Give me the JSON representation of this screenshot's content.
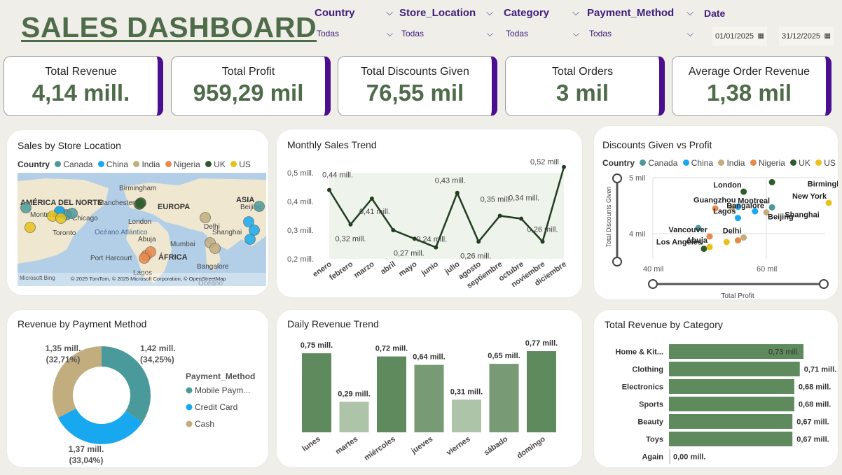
{
  "header": {
    "title": "SALES DASHBOARD"
  },
  "slicers": [
    {
      "label": "Country",
      "value": "Todas"
    },
    {
      "label": "Store_Location",
      "value": "Todas"
    },
    {
      "label": "Category",
      "value": "Todas"
    },
    {
      "label": "Payment_Method",
      "value": "Todas"
    }
  ],
  "date_slicer": {
    "label": "Date",
    "start": "01/01/2025",
    "end": "31/12/2025"
  },
  "kpis": [
    {
      "title": "Total Revenue",
      "value": "4,14 mill."
    },
    {
      "title": "Total Profit",
      "value": "959,29 mil"
    },
    {
      "title": "Total Discounts Given",
      "value": "76,55 mil"
    },
    {
      "title": "Total Orders",
      "value": "3 mil"
    },
    {
      "title": "Average Order Revenue",
      "value": "1,38 mil"
    }
  ],
  "colors": {
    "Canada": "#4a9a9b",
    "China": "#17a8f0",
    "India": "#c2ad7f",
    "Nigeria": "#e8884b",
    "UK": "#2f5a2c",
    "US": "#e8c21a",
    "green": "#5e8a5e",
    "light_green": "#aec4a9",
    "mid_green": "#7a9c77",
    "accent": "#4a0e8f",
    "title": "#4e6b4a"
  },
  "country_legend": {
    "label": "Country",
    "items": [
      "Canada",
      "China",
      "India",
      "Nigeria",
      "UK",
      "US"
    ]
  },
  "map": {
    "title": "Sales by Store Location",
    "labels": [
      "AMÉRICA DEL NORTE",
      "EUROPA",
      "ASIA",
      "ÁFRICA",
      "Océano Atlántico",
      "Birmingham",
      "Manchester",
      "Montreal",
      "Chicago",
      "Toronto",
      "London",
      "Abuja",
      "Mumbai",
      "Delhi",
      "Shanghai",
      "Beijing",
      "Port Harcourt",
      "Lagos",
      "Bangalore"
    ],
    "attribution": "© 2025 TomTom, © 2025 Microsoft Corporation, © OpenStreetMap",
    "bing": "Microsoft Bing",
    "ocean_bottom": "Océano"
  },
  "monthly": {
    "title": "Monthly Sales Trend",
    "chart_data": {
      "type": "line",
      "categories": [
        "enero",
        "febrero",
        "marzo",
        "abril",
        "mayo",
        "junio",
        "julio",
        "agosto",
        "septiembre",
        "octubre",
        "noviembre",
        "diciembre"
      ],
      "values": [
        0.44,
        0.32,
        0.41,
        0.3,
        0.27,
        0.24,
        0.43,
        0.26,
        0.35,
        0.34,
        0.26,
        0.52
      ],
      "data_labels": [
        "0,44 mill.",
        "0,32 mill.",
        "0,41 mill.",
        "",
        "0,27 mill.",
        "0,24 mill.",
        "0,43 mill.",
        "0,26 mill.",
        "0,35 mill.",
        "0,34 mill.",
        "0,26 mill.",
        "0,52 mill."
      ],
      "y_ticks": [
        "0,2 mill.",
        "0,3 mill.",
        "0,4 mill.",
        "0,5 mill."
      ],
      "ylim": [
        0.2,
        0.5
      ]
    }
  },
  "scatter": {
    "title": "Discounts Given vs Profit",
    "chart_data": {
      "type": "scatter",
      "xlabel": "Total Profit",
      "ylabel": "Total Discounts Given",
      "x_ticks": [
        "40 mil",
        "60 mil"
      ],
      "y_ticks": [
        "5 mil",
        "4 mil"
      ],
      "points": [
        {
          "city": "London",
          "country": "UK",
          "x": 56,
          "y": 4.75
        },
        {
          "city": "",
          "country": "UK",
          "x": 61,
          "y": 4.92
        },
        {
          "city": "Birmingham",
          "country": "",
          "x": 67,
          "y": 4.77
        },
        {
          "city": "Guangzhou",
          "country": "China",
          "x": 55,
          "y": 4.48
        },
        {
          "city": "",
          "country": "Nigeria",
          "x": 51,
          "y": 4.45
        },
        {
          "city": "",
          "country": "India",
          "x": 54,
          "y": 4.47
        },
        {
          "city": "Montreal",
          "country": "Canada",
          "x": 61,
          "y": 4.47
        },
        {
          "city": "New York",
          "country": "US",
          "x": 71,
          "y": 4.55
        },
        {
          "city": "Bangalore",
          "country": "India",
          "x": 60,
          "y": 4.38
        },
        {
          "city": "",
          "country": "China",
          "x": 58,
          "y": 4.4
        },
        {
          "city": "Lagos",
          "country": "China",
          "x": 55,
          "y": 4.28
        },
        {
          "city": "Beijing",
          "country": "",
          "x": 60,
          "y": 4.18
        },
        {
          "city": "Shanghai",
          "country": "",
          "x": 63,
          "y": 4.22
        },
        {
          "city": "",
          "country": "Canada",
          "x": 48,
          "y": 4.1
        },
        {
          "city": "Vancouver",
          "country": "Nigeria",
          "x": 50,
          "y": 3.95
        },
        {
          "city": "Delhi",
          "country": "India",
          "x": 56,
          "y": 3.93
        },
        {
          "city": "",
          "country": "US",
          "x": 53,
          "y": 3.85
        },
        {
          "city": "",
          "country": "Nigeria",
          "x": 55,
          "y": 3.88
        },
        {
          "city": "Los Angeles",
          "country": "UK",
          "x": 49,
          "y": 3.73
        },
        {
          "city": "Abuja",
          "country": "US",
          "x": 50,
          "y": 3.76
        }
      ]
    }
  },
  "payment": {
    "title": "Revenue by Payment Method",
    "legend_title": "Payment_Method",
    "chart_data": {
      "type": "pie",
      "slices": [
        {
          "name": "Mobile Paym...",
          "value": 1.42,
          "label": "1,42 mill.",
          "pct": "(34,25%)",
          "color": "#4a9a9b"
        },
        {
          "name": "Credit Card",
          "value": 1.37,
          "label": "1,37 mill.",
          "pct": "(33,04%)",
          "color": "#17a8f0"
        },
        {
          "name": "Cash",
          "value": 1.35,
          "label": "1,35 mill.",
          "pct": "(32,71%)",
          "color": "#c2ad7f"
        }
      ]
    }
  },
  "daily": {
    "title": "Daily Revenue Trend",
    "chart_data": {
      "type": "bar",
      "categories": [
        "lunes",
        "martes",
        "miércoles",
        "jueves",
        "viernes",
        "sábado",
        "domingo"
      ],
      "values": [
        0.75,
        0.29,
        0.72,
        0.64,
        0.31,
        0.65,
        0.77
      ],
      "labels": [
        "0,75 mill.",
        "0,29 mill.",
        "0,72 mill.",
        "0,64 mill.",
        "0,31 mill.",
        "0,65 mill.",
        "0,77 mill."
      ],
      "colors": [
        "#5e8a5e",
        "#aec4a9",
        "#5e8a5e",
        "#789a74",
        "#aec4a9",
        "#789a74",
        "#5e8a5e"
      ]
    }
  },
  "category": {
    "title": "Total Revenue by Category",
    "chart_data": {
      "type": "bar",
      "categories": [
        "Home & Kit...",
        "Clothing",
        "Electronics",
        "Sports",
        "Beauty",
        "Toys",
        "Again"
      ],
      "values": [
        0.73,
        0.71,
        0.68,
        0.68,
        0.67,
        0.67,
        0.0
      ],
      "labels": [
        "0,73 mill.",
        "0,71 mill.",
        "0,68 mill.",
        "0,68 mill.",
        "0,67 mill.",
        "0,67 mill.",
        "0,00 mill."
      ]
    }
  }
}
